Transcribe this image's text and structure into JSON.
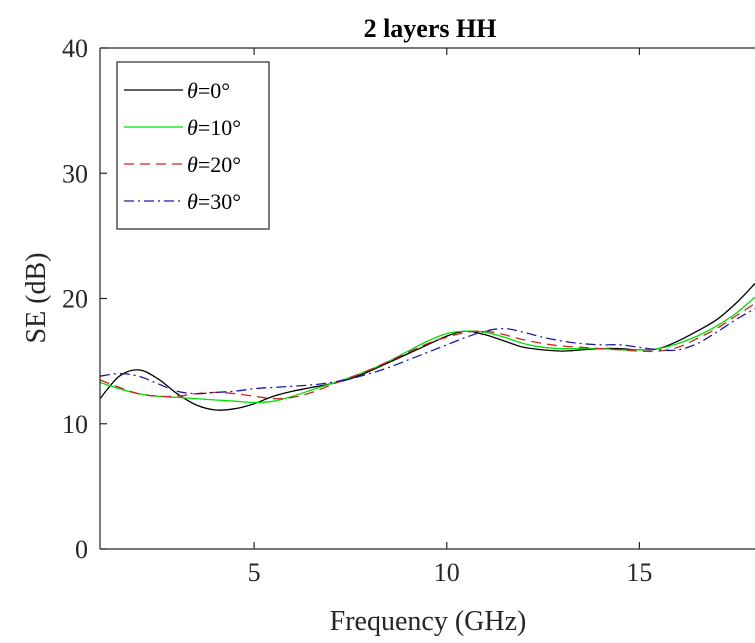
{
  "chart_data": {
    "type": "line",
    "title": "2 layers HH",
    "xlabel": "Frequency (GHz)",
    "ylabel": "SE (dB)",
    "xlim": [
      1,
      18
    ],
    "ylim": [
      0,
      40
    ],
    "xticks": [
      5,
      10,
      15
    ],
    "yticks": [
      0,
      10,
      20,
      30,
      40
    ],
    "grid": false,
    "legend_position": "top-left",
    "series": [
      {
        "name": "θ=0°",
        "color": "#000000",
        "dash": "solid",
        "x": [
          1,
          1.5,
          2,
          2.5,
          3,
          3.5,
          4,
          4.5,
          5,
          5.5,
          6,
          6.5,
          7,
          7.5,
          8,
          8.5,
          9,
          9.5,
          10,
          10.5,
          11,
          11.5,
          12,
          12.5,
          13,
          13.5,
          14,
          14.5,
          15,
          15.5,
          16,
          16.5,
          17,
          17.5,
          18
        ],
        "y": [
          12.0,
          13.8,
          14.3,
          13.6,
          12.4,
          11.5,
          11.1,
          11.2,
          11.6,
          12.2,
          12.6,
          12.9,
          13.2,
          13.6,
          14.2,
          14.9,
          15.6,
          16.3,
          17.0,
          17.4,
          17.1,
          16.6,
          16.1,
          15.9,
          15.8,
          15.9,
          16.0,
          16.0,
          15.9,
          16.0,
          16.6,
          17.4,
          18.3,
          19.6,
          21.2
        ]
      },
      {
        "name": "θ=10°",
        "color": "#00e000",
        "dash": "solid",
        "x": [
          1,
          1.5,
          2,
          2.5,
          3,
          3.5,
          4,
          4.5,
          5,
          5.5,
          6,
          6.5,
          7,
          7.5,
          8,
          8.5,
          9,
          9.5,
          10,
          10.5,
          11,
          11.5,
          12,
          12.5,
          13,
          13.5,
          14,
          14.5,
          15,
          15.5,
          16,
          16.5,
          17,
          17.5,
          18
        ],
        "y": [
          13.3,
          12.8,
          12.4,
          12.2,
          12.1,
          12.0,
          11.9,
          11.8,
          11.7,
          11.8,
          12.2,
          12.7,
          13.2,
          13.7,
          14.3,
          15.0,
          15.8,
          16.6,
          17.2,
          17.4,
          17.3,
          16.9,
          16.4,
          16.1,
          16.0,
          16.0,
          16.0,
          15.9,
          15.9,
          16.0,
          16.4,
          17.0,
          17.8,
          18.8,
          20.1
        ]
      },
      {
        "name": "θ=20°",
        "color": "#c82828",
        "dash": "dashed",
        "x": [
          1,
          1.5,
          2,
          2.5,
          3,
          3.5,
          4,
          4.5,
          5,
          5.5,
          6,
          6.5,
          7,
          7.5,
          8,
          8.5,
          9,
          9.5,
          10,
          10.5,
          11,
          11.5,
          12,
          12.5,
          13,
          13.5,
          14,
          14.5,
          15,
          15.5,
          16,
          16.5,
          17,
          17.5,
          18
        ],
        "y": [
          13.5,
          12.9,
          12.4,
          12.2,
          12.2,
          12.4,
          12.5,
          12.4,
          12.2,
          12.0,
          12.1,
          12.5,
          13.1,
          13.7,
          14.3,
          15.0,
          15.7,
          16.4,
          16.9,
          17.3,
          17.4,
          17.1,
          16.7,
          16.4,
          16.2,
          16.1,
          16.0,
          15.9,
          15.8,
          15.8,
          16.1,
          16.8,
          17.6,
          18.6,
          19.6
        ]
      },
      {
        "name": "θ=30°",
        "color": "#1a1aa8",
        "dash": "dashdot",
        "x": [
          1,
          1.5,
          2,
          2.5,
          3,
          3.5,
          4,
          4.5,
          5,
          5.5,
          6,
          6.5,
          7,
          7.5,
          8,
          8.5,
          9,
          9.5,
          10,
          10.5,
          11,
          11.5,
          12,
          12.5,
          13,
          13.5,
          14,
          14.5,
          15,
          15.5,
          16,
          16.5,
          17,
          17.5,
          18
        ],
        "y": [
          13.8,
          14.0,
          13.8,
          13.2,
          12.6,
          12.4,
          12.5,
          12.6,
          12.8,
          12.9,
          13.0,
          13.1,
          13.3,
          13.6,
          14.0,
          14.5,
          15.1,
          15.7,
          16.3,
          16.9,
          17.4,
          17.6,
          17.3,
          16.9,
          16.6,
          16.4,
          16.3,
          16.3,
          16.1,
          15.9,
          15.9,
          16.4,
          17.3,
          18.3,
          19.2
        ]
      }
    ]
  }
}
